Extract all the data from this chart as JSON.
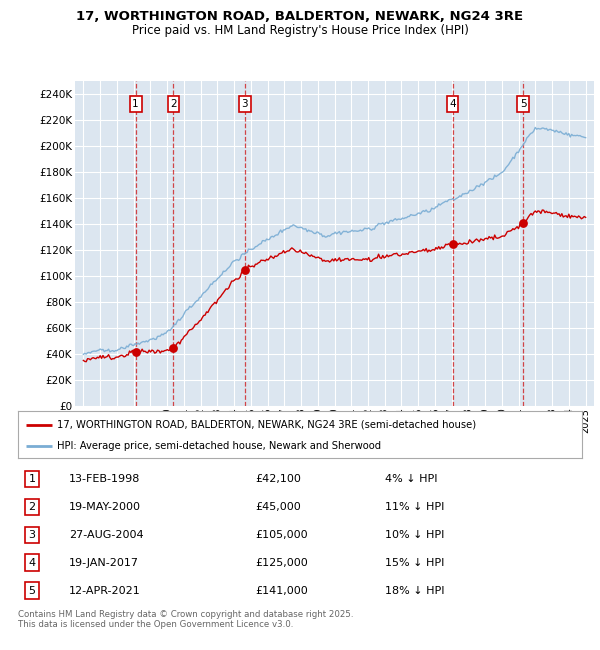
{
  "title_line1": "17, WORTHINGTON ROAD, BALDERTON, NEWARK, NG24 3RE",
  "title_line2": "Price paid vs. HM Land Registry's House Price Index (HPI)",
  "ylim": [
    0,
    250000
  ],
  "yticks": [
    0,
    20000,
    40000,
    60000,
    80000,
    100000,
    120000,
    140000,
    160000,
    180000,
    200000,
    220000,
    240000
  ],
  "xlim_start": 1994.5,
  "xlim_end": 2025.5,
  "background_color": "#dce6f0",
  "grid_color": "#ffffff",
  "sale_color": "#cc0000",
  "hpi_color": "#7aadd4",
  "sale_dates": [
    1998.12,
    2000.38,
    2004.65,
    2017.05,
    2021.28
  ],
  "sale_prices": [
    42100,
    45000,
    105000,
    125000,
    141000
  ],
  "sale_labels": [
    "1",
    "2",
    "3",
    "4",
    "5"
  ],
  "legend_sale_label": "17, WORTHINGTON ROAD, BALDERTON, NEWARK, NG24 3RE (semi-detached house)",
  "legend_hpi_label": "HPI: Average price, semi-detached house, Newark and Sherwood",
  "table_data": [
    {
      "num": "1",
      "date": "13-FEB-1998",
      "price": "£42,100",
      "pct": "4% ↓ HPI"
    },
    {
      "num": "2",
      "date": "19-MAY-2000",
      "price": "£45,000",
      "pct": "11% ↓ HPI"
    },
    {
      "num": "3",
      "date": "27-AUG-2004",
      "price": "£105,000",
      "pct": "10% ↓ HPI"
    },
    {
      "num": "4",
      "date": "19-JAN-2017",
      "price": "£125,000",
      "pct": "15% ↓ HPI"
    },
    {
      "num": "5",
      "date": "12-APR-2021",
      "price": "£141,000",
      "pct": "18% ↓ HPI"
    }
  ],
  "footer_text": "Contains HM Land Registry data © Crown copyright and database right 2025.\nThis data is licensed under the Open Government Licence v3.0.",
  "dashed_line_color": "#cc0000"
}
